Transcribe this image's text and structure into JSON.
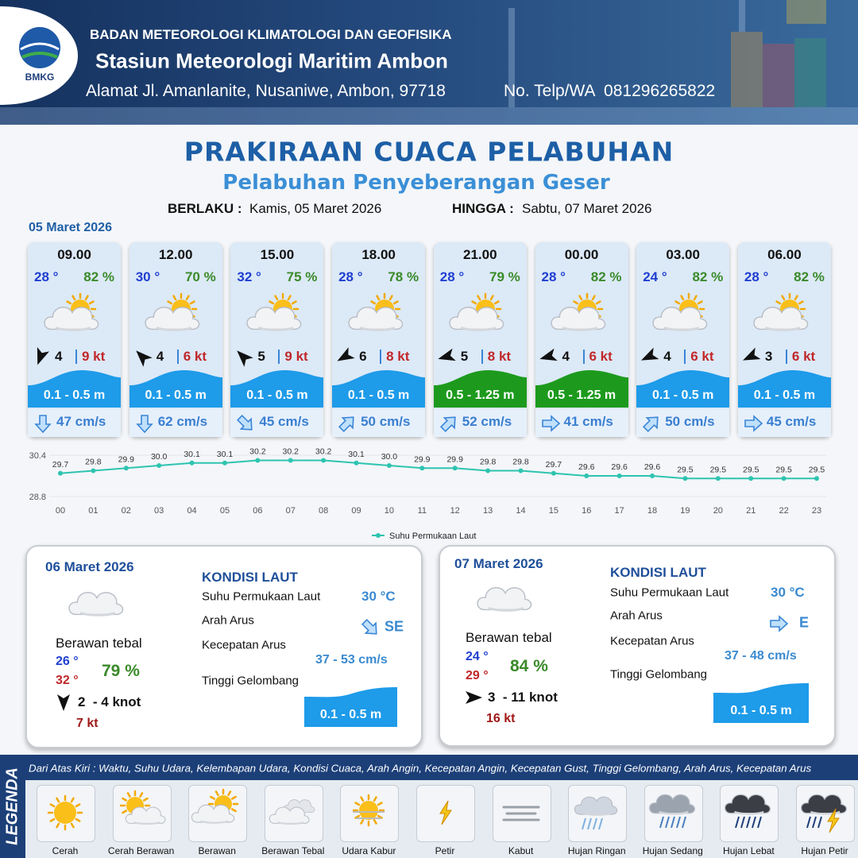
{
  "header": {
    "logo": "BMKG",
    "agency": "BADAN METEOROLOGI KLIMATOLOGI DAN GEOFISIKA",
    "station": "Stasiun Meteorologi Maritim Ambon",
    "address": "Alamat Jl. Amanlanite, Nusaniwe, Ambon, 97718",
    "phone": "No. Telp/WA  081296265822"
  },
  "title": "PRAKIRAAN CUACA PELABUHAN",
  "subtitle": "Pelabuhan Penyeberangan Geser",
  "validity": {
    "from_label": "BERLAKU :",
    "from": "Kamis, 05 Maret 2026",
    "to_label": "HINGGA :",
    "to": "Sabtu, 07 Maret 2026"
  },
  "day1": {
    "date": "05 Maret 2026",
    "cards": [
      {
        "time": "09.00",
        "temp": "28 °",
        "humidity": "82 %",
        "wind": "4",
        "gust": "9 kt",
        "wave": "0.1 - 0.5 m",
        "wave_color": "#1e9be9",
        "current": "47 cm/s"
      },
      {
        "time": "12.00",
        "temp": "30 °",
        "humidity": "70 %",
        "wind": "4",
        "gust": "6 kt",
        "wave": "0.1 - 0.5 m",
        "wave_color": "#1e9be9",
        "current": "62 cm/s"
      },
      {
        "time": "15.00",
        "temp": "32 °",
        "humidity": "75 %",
        "wind": "5",
        "gust": "9 kt",
        "wave": "0.1 - 0.5 m",
        "wave_color": "#1e9be9",
        "current": "45 cm/s"
      },
      {
        "time": "18.00",
        "temp": "28 °",
        "humidity": "78 %",
        "wind": "6",
        "gust": "8 kt",
        "wave": "0.1 - 0.5 m",
        "wave_color": "#1e9be9",
        "current": "50 cm/s"
      },
      {
        "time": "21.00",
        "temp": "28 °",
        "humidity": "79 %",
        "wind": "5",
        "gust": "8 kt",
        "wave": "0.5 - 1.25 m",
        "wave_color": "#1d9a1d",
        "current": "52 cm/s"
      },
      {
        "time": "00.00",
        "temp": "28 °",
        "humidity": "82 %",
        "wind": "4",
        "gust": "6 kt",
        "wave": "0.5 - 1.25 m",
        "wave_color": "#1d9a1d",
        "current": "41 cm/s"
      },
      {
        "time": "03.00",
        "temp": "24 °",
        "humidity": "82 %",
        "wind": "4",
        "gust": "6 kt",
        "wave": "0.1 - 0.5 m",
        "wave_color": "#1e9be9",
        "current": "50 cm/s"
      },
      {
        "time": "06.00",
        "temp": "28 °",
        "humidity": "82 %",
        "wind": "3",
        "gust": "6 kt",
        "wave": "0.1 - 0.5 m",
        "wave_color": "#1e9be9",
        "current": "45 cm/s"
      }
    ]
  },
  "chart_data": {
    "type": "line",
    "categories": [
      "00",
      "01",
      "02",
      "03",
      "04",
      "05",
      "06",
      "07",
      "08",
      "09",
      "10",
      "11",
      "12",
      "13",
      "14",
      "15",
      "16",
      "17",
      "18",
      "19",
      "20",
      "21",
      "22",
      "23"
    ],
    "series": [
      {
        "name": "Suhu Permukaan Laut",
        "color": "#2ec4b0",
        "values": [
          29.7,
          29.8,
          29.9,
          30.0,
          30.1,
          30.1,
          30.2,
          30.2,
          30.2,
          30.1,
          30.0,
          29.9,
          29.9,
          29.8,
          29.8,
          29.7,
          29.6,
          29.6,
          29.6,
          29.5,
          29.5,
          29.5,
          29.5,
          29.5
        ],
        "value_labels": [
          "29.7",
          "29.8",
          "29.9",
          "30.0",
          "30.1",
          "30.1",
          "30.2",
          "30.2",
          "30.2",
          "30.1",
          "30.0",
          "29.9",
          "29.9",
          "29.8",
          "29.8",
          "29.7",
          "29.6",
          "29.6",
          "29.6",
          "29.5",
          "29.5",
          "29.5",
          "29.5",
          "29.5"
        ]
      }
    ],
    "ylim": [
      28.8,
      30.4
    ],
    "yticks": [
      28.8,
      30.4
    ],
    "grid": true,
    "legend": "bottom"
  },
  "days": [
    {
      "date": "06 Maret 2026",
      "condition": "Berawan tebal",
      "temp_min": "26 °",
      "temp_max": "32 °",
      "humidity": "79 %",
      "wind": "2  - 4 knot",
      "gust": "7 kt",
      "sea_heading": "KONDISI LAUT",
      "sst_label": "Suhu Permukaan Laut",
      "sst": "30 °C",
      "current_dir_label": "Arah Arus",
      "current_dir": "SE",
      "current_speed_label": "Kecepatan Arus",
      "current_speed": "37 - 53 cm/s",
      "wave_label": "Tinggi Gelombang",
      "wave": "0.1 - 0.5 m"
    },
    {
      "date": "07 Maret 2026",
      "condition": "Berawan tebal",
      "temp_min": "24 °",
      "temp_max": "29 °",
      "humidity": "84 %",
      "wind": "3  - 11 knot",
      "gust": "16 kt",
      "sea_heading": "KONDISI LAUT",
      "sst_label": "Suhu Permukaan Laut",
      "sst": "30 °C",
      "current_dir_label": "Arah Arus",
      "current_dir": "E",
      "current_speed_label": "Kecepatan Arus",
      "current_speed": "37 - 48 cm/s",
      "wave_label": "Tinggi Gelombang",
      "wave": "0.1 - 0.5 m"
    }
  ],
  "legend": {
    "title": "LEGENDA",
    "description": "Dari Atas Kiri : Waktu, Suhu Udara, Kelembapan Udara, Kondisi Cuaca, Arah Angin, Kecepatan Angin, Kecepatan Gust, Tinggi Gelombang, Arah Arus, Kecepatan Arus",
    "items": [
      "Cerah",
      "Cerah Berawan",
      "Berawan",
      "Berawan Tebal",
      "Udara Kabur",
      "Petir",
      "Kabut",
      "Hujan Ringan",
      "Hujan Sedang",
      "Hujan Lebat",
      "Hujan Petir"
    ]
  }
}
